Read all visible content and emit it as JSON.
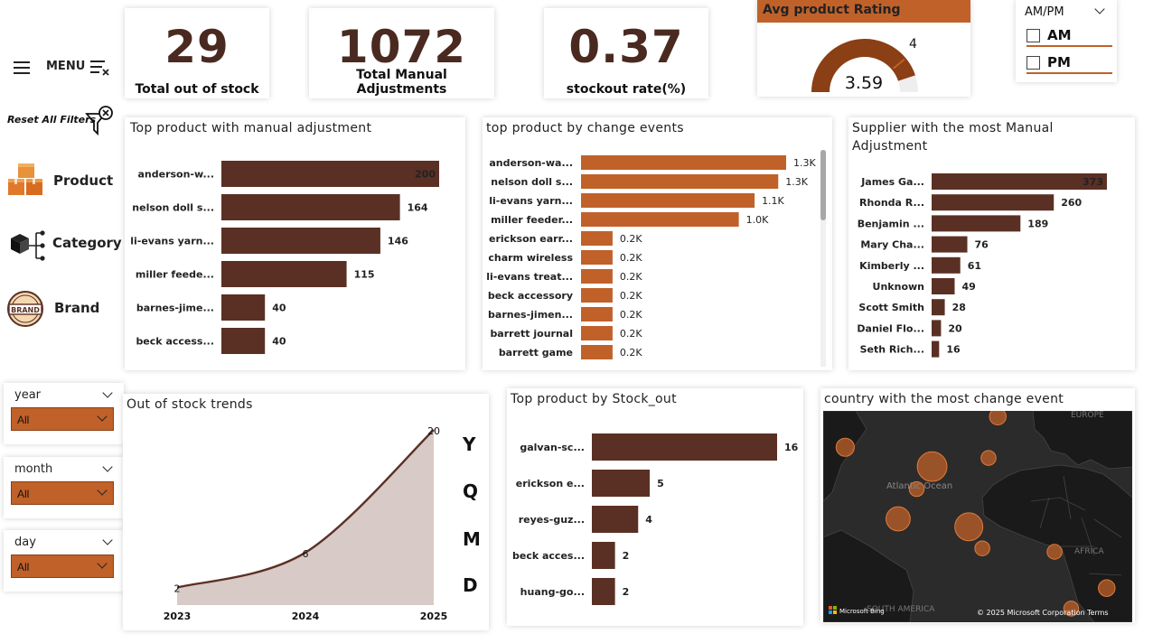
{
  "nav": {
    "menu_label": "MENU",
    "reset_label": "Reset All Filters",
    "items": [
      {
        "label": "Product",
        "icon": "boxes-icon"
      },
      {
        "label": "Category",
        "icon": "category-tree-icon"
      },
      {
        "label": "Brand",
        "icon": "brand-badge-icon"
      }
    ],
    "brand_badge_text": "BRAND"
  },
  "kpis": [
    {
      "value": "29",
      "label": "Total out of stock"
    },
    {
      "value": "1072",
      "label": "Total Manual Adjustments"
    },
    {
      "value": "0.37",
      "label": "stockout rate(%)"
    }
  ],
  "gauge": {
    "title": "Avg product Rating",
    "value": 3.59,
    "value_label": "3.59",
    "max": 4,
    "max_label": "4",
    "min": 0
  },
  "ampm": {
    "title": "AM/PM",
    "options": [
      "AM",
      "PM"
    ]
  },
  "slicers": [
    {
      "label": "year",
      "value": "All"
    },
    {
      "label": "month",
      "value": "All"
    },
    {
      "label": "day",
      "value": "All"
    }
  ],
  "drill_buttons": [
    "Y",
    "Q",
    "M",
    "D"
  ],
  "map": {
    "title": "country with the most change event",
    "labels": {
      "europe": "EUROPE",
      "ocean": "Atlantic Ocean",
      "africa": "AFRICA",
      "south_america": "SOUTH AMERICA"
    },
    "logo": "Microsoft Bing",
    "copyright": "© 2025 Microsoft Corporation",
    "terms": "Terms"
  },
  "colors": {
    "dark_brown": "#5b3024",
    "orange": "#c0612a",
    "gauge": "#8a3f15",
    "area_fill": "#d8cac6",
    "map_bg": "#2b2b2b",
    "bubble": "#c0612a"
  },
  "chart_data": [
    {
      "id": "manual",
      "type": "bar",
      "orientation": "horizontal",
      "title": "Top product with manual adjustment",
      "categories": [
        "anderson-w...",
        "nelson doll s...",
        "li-evans yarn...",
        "miller feede...",
        "barnes-jime...",
        "beck access..."
      ],
      "values": [
        200,
        164,
        146,
        115,
        40,
        40
      ],
      "labels": [
        "200",
        "164",
        "146",
        "115",
        "40",
        "40"
      ],
      "xlim": [
        0,
        200
      ]
    },
    {
      "id": "change",
      "type": "bar",
      "orientation": "horizontal",
      "title": "top product by change events",
      "categories": [
        "anderson-wa...",
        "nelson doll s...",
        "li-evans yarn...",
        "miller feeder...",
        "erickson earr...",
        "charm wireless",
        "li-evans treat...",
        "beck accessory",
        "barnes-jimen...",
        "barrett journal",
        "barrett game"
      ],
      "values": [
        1300,
        1250,
        1100,
        1000,
        200,
        200,
        200,
        200,
        200,
        200,
        200
      ],
      "labels": [
        "1.3K",
        "1.3K",
        "1.1K",
        "1.0K",
        "0.2K",
        "0.2K",
        "0.2K",
        "0.2K",
        "0.2K",
        "0.2K",
        "0.2K"
      ],
      "xlim": [
        0,
        1300
      ]
    },
    {
      "id": "supplier",
      "type": "bar",
      "orientation": "horizontal",
      "title": "Supplier with the most Manual Adjustment",
      "categories": [
        "James Ga...",
        "Rhonda R...",
        "Benjamin ...",
        "Mary Cha...",
        "Kimberly ...",
        "Unknown",
        "Scott Smith",
        "Daniel Flo...",
        "Seth Rich..."
      ],
      "values": [
        373,
        260,
        189,
        76,
        61,
        49,
        28,
        20,
        16
      ],
      "labels": [
        "373",
        "260",
        "189",
        "76",
        "61",
        "49",
        "28",
        "20",
        "16"
      ],
      "xlim": [
        0,
        373
      ]
    },
    {
      "id": "trend",
      "type": "area",
      "title": "Out of stock trends",
      "x": [
        "2023",
        "2024",
        "2025"
      ],
      "values": [
        2,
        6,
        20
      ],
      "labels": [
        "2",
        "6",
        "20"
      ],
      "ylim": [
        0,
        20
      ]
    },
    {
      "id": "stockout",
      "type": "bar",
      "orientation": "horizontal",
      "title": "Top product by Stock_out",
      "categories": [
        "galvan-sc...",
        "erickson e...",
        "reyes-guz...",
        "beck acces...",
        "huang-go..."
      ],
      "values": [
        16,
        5,
        4,
        2,
        2
      ],
      "labels": [
        "16",
        "5",
        "4",
        "2",
        "2"
      ],
      "xlim": [
        0,
        16
      ]
    },
    {
      "id": "map_bubbles",
      "type": "scatter",
      "title": "country with the most change event",
      "x": [
        -34.3,
        -11.8,
        -20.6,
        -2.3,
        1.2,
        19.9,
        33.4,
        24.2,
        5.2,
        -15.8,
        2.8
      ],
      "y": [
        47.0,
        38.5,
        15.5,
        12.0,
        2.5,
        1.0,
        -15.0,
        -24.0,
        60.5,
        28.6,
        42.3
      ],
      "values": [
        5,
        16,
        10,
        14,
        3,
        3,
        4,
        3,
        4,
        3,
        3
      ]
    }
  ]
}
